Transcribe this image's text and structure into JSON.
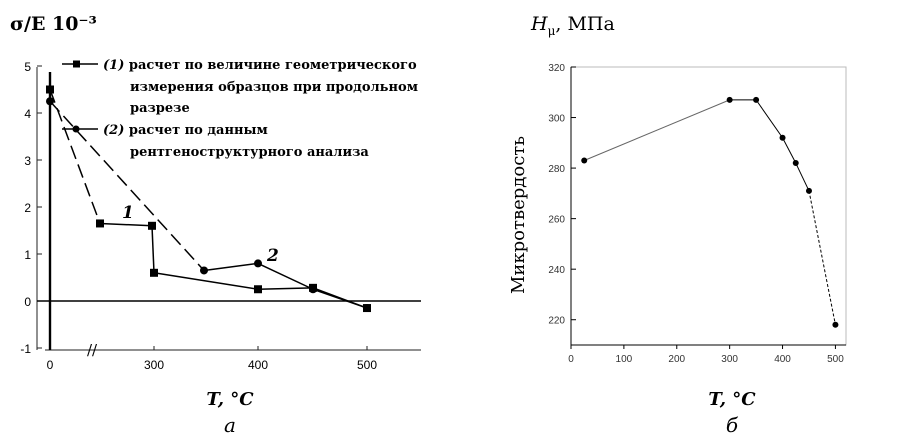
{
  "chart_data": [
    {
      "type": "line",
      "panel_label": "а",
      "ylabel": "σ/E 10⁻³",
      "xlabel": "T, °C",
      "xlim": [
        0,
        550
      ],
      "ylim": [
        -1,
        5
      ],
      "x_ticks": [
        "0",
        "300",
        "400",
        "500"
      ],
      "y_ticks": [
        "-1",
        "0",
        "1",
        "2",
        "3",
        "4",
        "5"
      ],
      "axis_break_mark": "//",
      "grid": false,
      "legend_position": "top",
      "legend": [
        {
          "marker": "square",
          "label_num": "(1)",
          "lines": [
            "расчет по величине геометрического",
            "измерения образцов при продольном",
            "разрезе"
          ]
        },
        {
          "marker": "circle",
          "label_num": "(2)",
          "lines": [
            "расчет по данным",
            "рентгеноструктурного анализа"
          ]
        }
      ],
      "series": [
        {
          "name": "1",
          "marker": "square",
          "x": [
            0,
            100,
            200,
            300,
            400,
            450,
            500
          ],
          "values": [
            4.5,
            1.65,
            1.6,
            0.6,
            0.25,
            0.28,
            -0.15
          ]
        },
        {
          "name": "2",
          "marker": "circle",
          "x": [
            0,
            350,
            400,
            450,
            500
          ],
          "values": [
            4.25,
            0.65,
            0.8,
            0.25,
            -0.15
          ]
        }
      ],
      "annotations": [
        "1",
        "2"
      ]
    },
    {
      "type": "line",
      "panel_label": "б",
      "title": "H_μ, МПа",
      "ylabel": "Микротвердость",
      "xlabel": "T, °C",
      "xlim": [
        0,
        520
      ],
      "ylim": [
        210,
        320
      ],
      "x_ticks": [
        "0",
        "100",
        "200",
        "300",
        "400",
        "500"
      ],
      "y_ticks": [
        "220",
        "240",
        "260",
        "280",
        "300",
        "320"
      ],
      "grid": false,
      "series": [
        {
          "name": "",
          "marker": "circle",
          "x": [
            25,
            300,
            350,
            400,
            425,
            450,
            500
          ],
          "values": [
            283,
            307,
            307,
            292,
            282,
            271,
            218
          ]
        }
      ]
    }
  ]
}
